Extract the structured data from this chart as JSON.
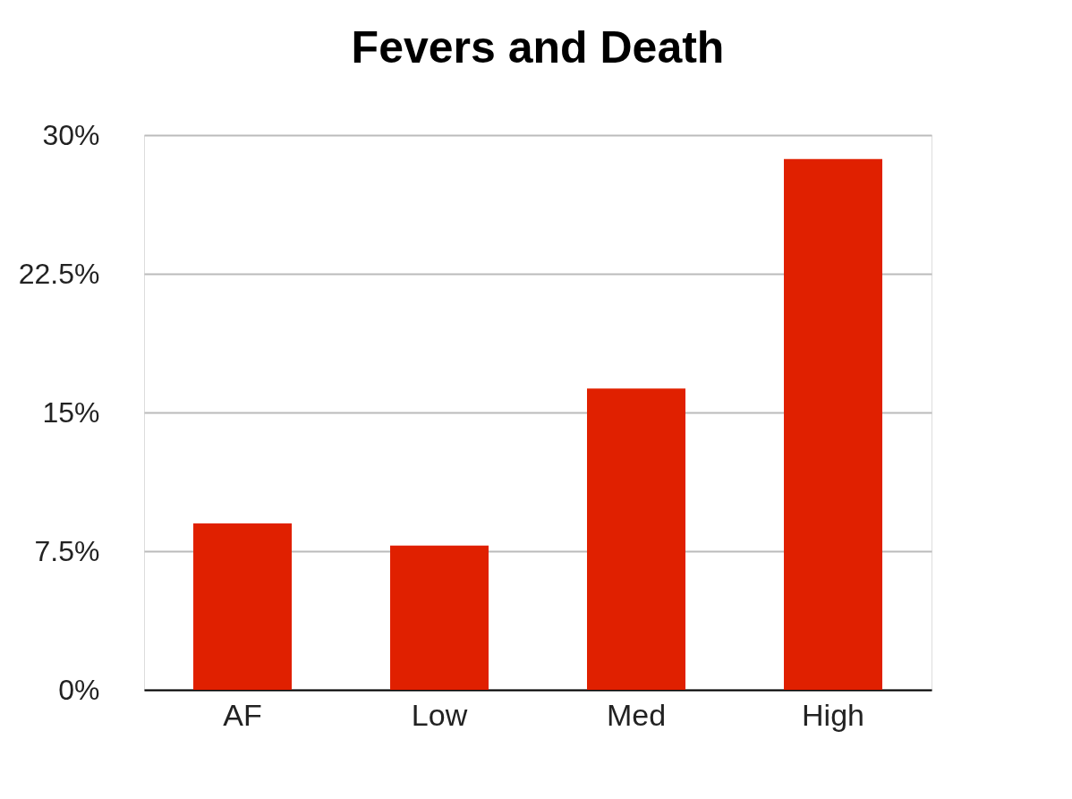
{
  "chart_data": {
    "type": "bar",
    "title": "Fevers and Death",
    "categories": [
      "AF",
      "Low",
      "Med",
      "High"
    ],
    "values": [
      9.0,
      7.8,
      16.3,
      28.7
    ],
    "color": "#e02000",
    "ylim": [
      0,
      30
    ],
    "yticks": [
      {
        "value": 0,
        "label": "0%"
      },
      {
        "value": 7.5,
        "label": "7.5%"
      },
      {
        "value": 15,
        "label": "15%"
      },
      {
        "value": 22.5,
        "label": "22.5%"
      },
      {
        "value": 30,
        "label": "30%"
      }
    ],
    "grid": "y"
  }
}
